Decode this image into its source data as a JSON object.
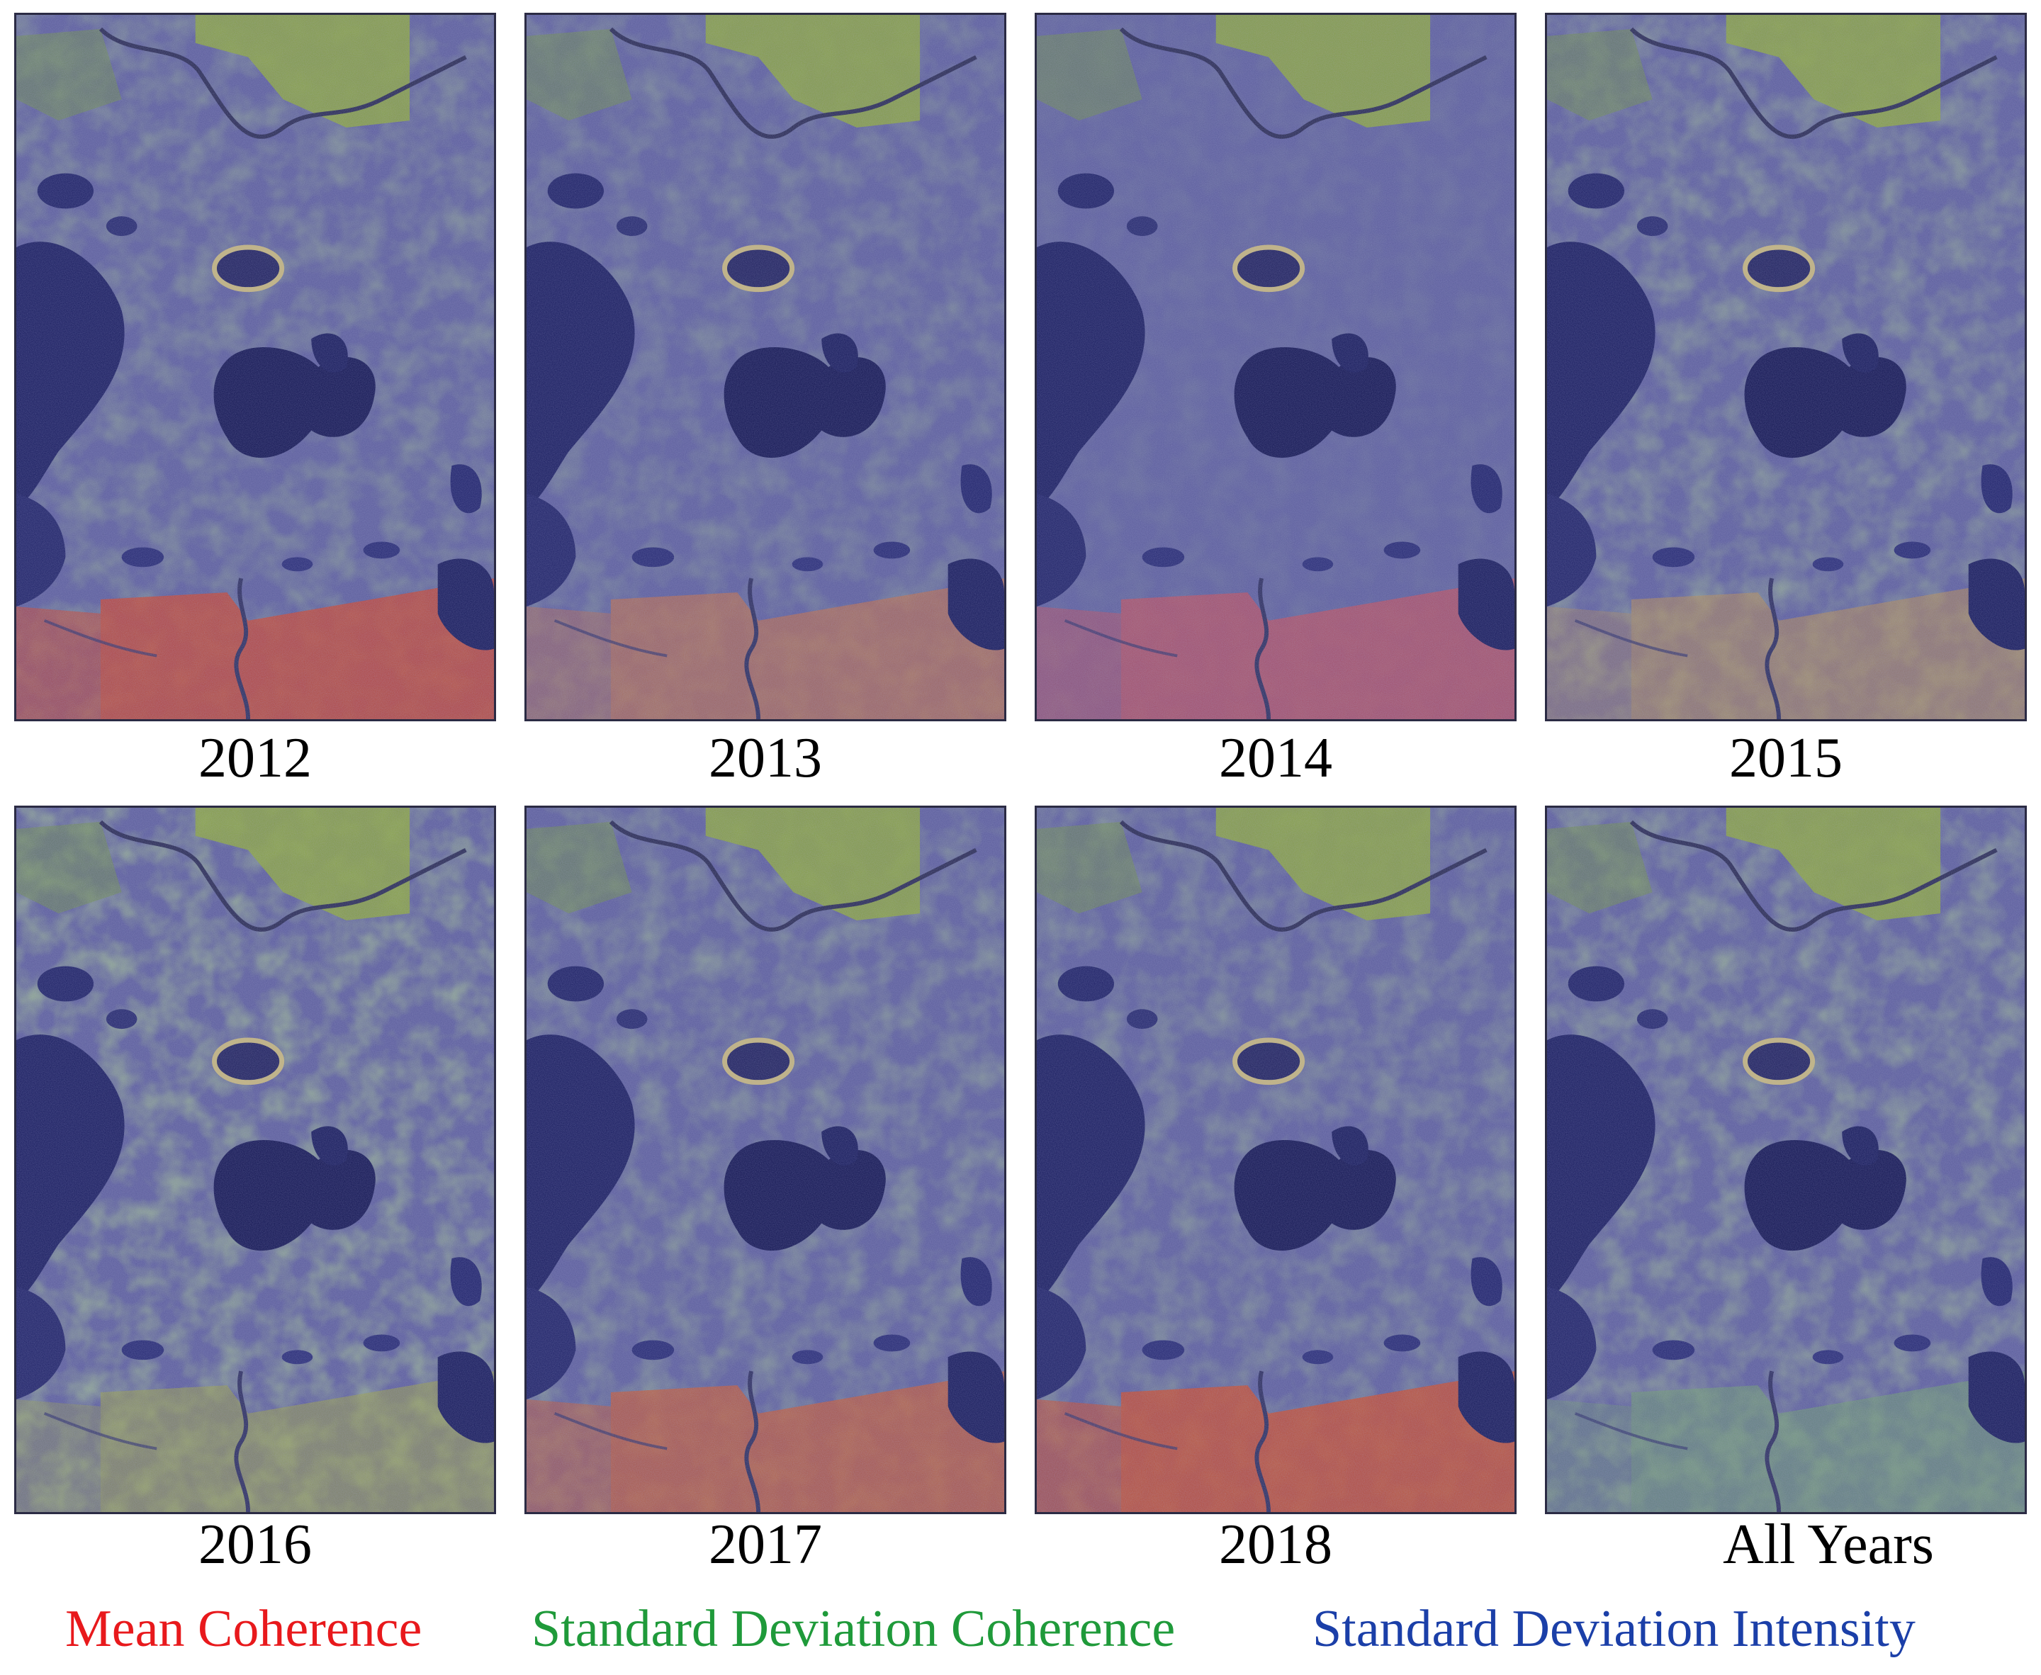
{
  "figure": {
    "panels": [
      {
        "label": "2012",
        "tint": "#c8432a",
        "tint_strength": 0.42,
        "green_strength": 0.38
      },
      {
        "label": "2013",
        "tint": "#c66a3c",
        "tint_strength": 0.25,
        "green_strength": 0.3
      },
      {
        "label": "2014",
        "tint": "#c84a52",
        "tint_strength": 0.3,
        "green_strength": 0.12
      },
      {
        "label": "2015",
        "tint": "#b88a4a",
        "tint_strength": 0.2,
        "green_strength": 0.45
      },
      {
        "label": "2016",
        "tint": "#9aa040",
        "tint_strength": 0.2,
        "green_strength": 0.6
      },
      {
        "label": "2017",
        "tint": "#c45630",
        "tint_strength": 0.38,
        "green_strength": 0.42
      },
      {
        "label": "2018",
        "tint": "#c84a28",
        "tint_strength": 0.45,
        "green_strength": 0.4
      },
      {
        "label": "All Years",
        "tint": "#6c9c68",
        "tint_strength": 0.2,
        "green_strength": 0.5
      }
    ],
    "legend": [
      {
        "label": "Mean Coherence",
        "color": "#e8191c"
      },
      {
        "label": "Standard Deviation Coherence",
        "color": "#1f9a3a"
      },
      {
        "label": "Standard Deviation Intensity",
        "color": "#1b3fa8"
      }
    ]
  }
}
